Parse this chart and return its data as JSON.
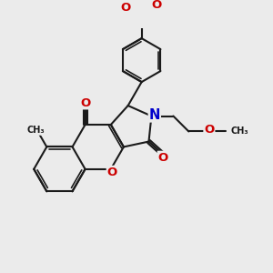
{
  "bg_color": "#ebebeb",
  "bond_color": "#1a1a1a",
  "o_color": "#cc0000",
  "n_color": "#0000cc",
  "lw": 1.5,
  "dbo": 0.06,
  "fs": 8.5,
  "fig_size": [
    3.0,
    3.0
  ],
  "xlim": [
    -4.5,
    5.5
  ],
  "ylim": [
    -4.5,
    5.0
  ]
}
